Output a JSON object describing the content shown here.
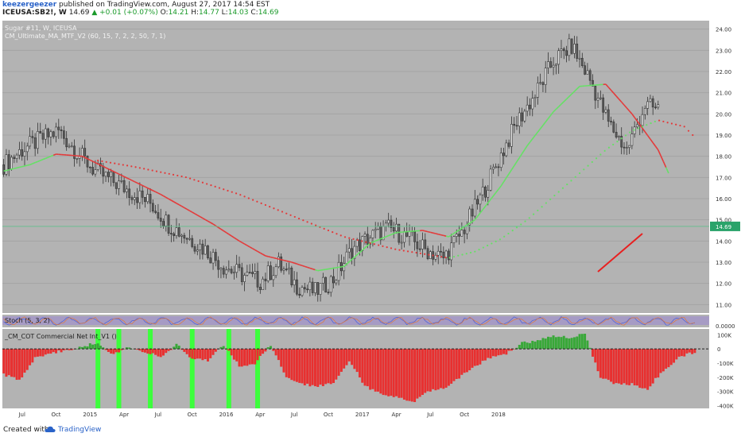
{
  "header": {
    "author": "keezergeezer",
    "published": "published on TradingView.com, August 27, 2017 14:54 EST",
    "symbol": "ICEUSA:SB2!, W",
    "price": "14.69",
    "change": "+0.01 (+0.07%)",
    "open_label": "O:",
    "open": "14.21",
    "high_label": "H:",
    "high": "14.77",
    "low_label": "L:",
    "low": "14.03",
    "close_label": "C:",
    "close": "14.69"
  },
  "footer": {
    "created": "Created with",
    "brand": "TradingView"
  },
  "colors": {
    "bg": "#b3b3b3",
    "up": "#e8e8e8",
    "down": "#5c5c5c",
    "ma_fast": "#66e066",
    "ma_slow": "#e33b3b",
    "cot_neg": "#e83030",
    "cot_pos": "#38a838",
    "highlight": "#3cff3c",
    "stoch_band": "#a69bc4"
  },
  "chart_data": [
    {
      "type": "line",
      "title": "Sugar #11, W, ICEUSA",
      "indicator": "CM_Ultimate_MA_MTF_V2 (60, 15, 7, 2, 2, 50, 7, 1)",
      "y_ticks": [
        "24.00",
        "23.00",
        "22.00",
        "21.00",
        "20.00",
        "19.00",
        "18.00",
        "17.00",
        "16.00",
        "15.00",
        "14.00",
        "13.00",
        "12.00",
        "11.00"
      ],
      "ylim": [
        10.6,
        24.4
      ],
      "current_price_label": "14.69",
      "x_ticks": [
        "Apr",
        "Jul",
        "Oct",
        "2015",
        "Apr",
        "Jul",
        "Oct",
        "2016",
        "Apr",
        "Jul",
        "Oct",
        "2017",
        "Apr",
        "Jul",
        "Oct",
        "2018"
      ],
      "series": [
        {
          "style": "candlestick",
          "x": [
            0,
            7,
            14,
            21,
            28,
            35,
            42,
            49,
            56,
            63,
            70,
            77,
            84,
            91,
            98,
            105,
            112,
            119,
            126,
            133,
            140,
            147,
            154,
            161,
            168,
            175,
            182,
            189,
            196,
            203,
            210,
            217,
            224,
            231,
            238,
            245,
            250
          ],
          "values": [
            17.6,
            18.3,
            18.8,
            19.2,
            18.2,
            17.3,
            16.8,
            16.3,
            15.8,
            14.8,
            14.2,
            13.6,
            12.8,
            12.4,
            12.1,
            12.9,
            11.9,
            11.6,
            12.2,
            13.6,
            14.2,
            14.6,
            14.2,
            13.6,
            13.2,
            14.4,
            16.0,
            17.8,
            19.6,
            20.9,
            22.5,
            23.2,
            21.6,
            19.6,
            18.3,
            20.4,
            20.2
          ]
        },
        {
          "name": "fast MA",
          "x": [
            0,
            10,
            20,
            30,
            40,
            50,
            60,
            70,
            80,
            90,
            100,
            110,
            120,
            130,
            140,
            150,
            160,
            170,
            180,
            190,
            200,
            210,
            220,
            230,
            240,
            250,
            254
          ],
          "values": [
            17.3,
            17.6,
            18.1,
            18.0,
            17.4,
            16.8,
            16.2,
            15.5,
            14.8,
            14.0,
            13.3,
            13.0,
            12.6,
            12.8,
            13.9,
            14.4,
            14.5,
            14.2,
            15.0,
            16.6,
            18.5,
            20.1,
            21.3,
            21.4,
            20.0,
            18.3,
            17.2
          ]
        },
        {
          "name": "slow MA",
          "x": [
            36,
            50,
            70,
            90,
            110,
            130,
            150,
            170,
            180,
            190,
            200,
            210,
            220,
            230,
            240,
            250,
            260,
            264
          ],
          "values": [
            17.8,
            17.5,
            17.0,
            16.2,
            15.2,
            14.2,
            13.6,
            13.2,
            13.5,
            14.1,
            15.0,
            16.1,
            17.2,
            18.3,
            19.2,
            19.7,
            19.4,
            18.9
          ]
        }
      ],
      "xlabel": "",
      "ylabel": ""
    },
    {
      "type": "line",
      "title": "Stoch (5, 3, 2)",
      "y_ticks": [
        "0.0000"
      ],
      "ylim": [
        0,
        100
      ]
    },
    {
      "type": "bar",
      "title": "_CM_COT Commercial Net Int_V1 ()",
      "y_ticks": [
        "100K",
        "0",
        "-100K",
        "-200K",
        "-300K",
        "-400K"
      ],
      "ylim": [
        -420,
        130
      ],
      "x": [
        0,
        6,
        12,
        18,
        24,
        30,
        36,
        42,
        48,
        54,
        60,
        66,
        72,
        78,
        84,
        90,
        96,
        102,
        108,
        114,
        120,
        126,
        132,
        138,
        144,
        150,
        156,
        162,
        168,
        174,
        180,
        186,
        192,
        198,
        204,
        210,
        216,
        222,
        228,
        234,
        240,
        246,
        252,
        258,
        264
      ],
      "values": [
        -180,
        -220,
        -60,
        -30,
        -10,
        20,
        40,
        -40,
        15,
        -20,
        -60,
        30,
        -70,
        -80,
        30,
        -120,
        -100,
        25,
        -200,
        -250,
        -260,
        -240,
        -80,
        -260,
        -320,
        -340,
        -380,
        -300,
        -280,
        -200,
        -120,
        -60,
        -30,
        40,
        60,
        90,
        80,
        110,
        -200,
        -250,
        -250,
        -280,
        -150,
        -60,
        -20
      ],
      "highlight_weeks": [
        36,
        44,
        56,
        72,
        86,
        97
      ]
    }
  ]
}
